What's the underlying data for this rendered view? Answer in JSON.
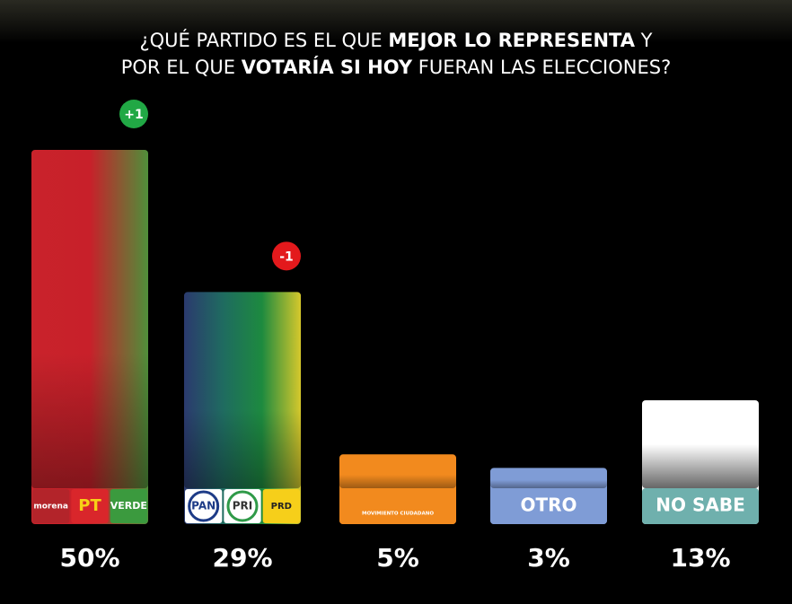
{
  "chart_data": {
    "type": "bar",
    "title_lines": [
      [
        {
          "text": "¿QUÉ PARTIDO ES EL QUE ",
          "bold": false
        },
        {
          "text": "MEJOR LO REPRESENTA",
          "bold": true
        },
        {
          "text": " Y",
          "bold": false
        }
      ],
      [
        {
          "text": "POR EL QUE ",
          "bold": false
        },
        {
          "text": "VOTARÍA SI HOY",
          "bold": true
        },
        {
          "text": " FUERAN LAS ELECCIONES?",
          "bold": false
        }
      ]
    ],
    "categories": [
      [
        "morena",
        "PT",
        "VERDE"
      ],
      [
        "PAN",
        "PRI",
        "PRD"
      ],
      [
        "MOVIMIENTO CIUDADANO"
      ],
      [
        "OTRO"
      ],
      [
        "NO SABE"
      ]
    ],
    "values": [
      50,
      29,
      5,
      3,
      13
    ],
    "value_labels": [
      "50%",
      "29%",
      "5%",
      "3%",
      "13%"
    ],
    "colors": [
      [
        "#c9232b",
        "#c8202a",
        "#4f8f3a"
      ],
      [
        "#2b3a6e",
        "#1f6b60",
        "#1d8a3f",
        "#d6c82c"
      ],
      [
        "#f28a1e"
      ],
      [
        "#7f9cd6"
      ],
      [
        "#ffffff"
      ]
    ],
    "changes": [
      {
        "label": "+1",
        "color": "#21a845"
      },
      {
        "label": "-1",
        "color": "#e3191c"
      },
      null,
      null,
      null
    ]
  }
}
